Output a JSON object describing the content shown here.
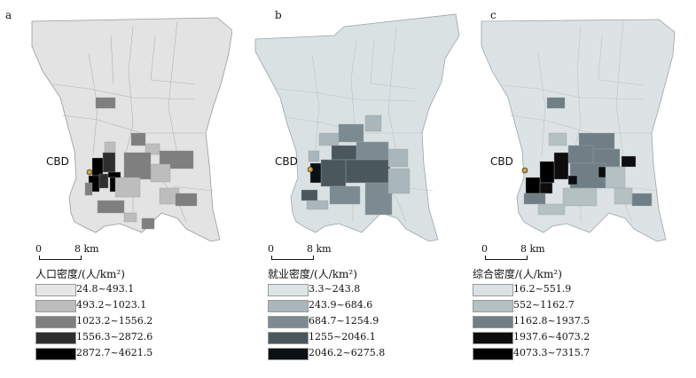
{
  "panels": [
    {
      "id": "a",
      "label": "a",
      "cbd_label": "CBD",
      "scale_zero": "0",
      "scale_km": "8 km",
      "legend_title": "人口密度/(人/km²)",
      "legend": [
        {
          "range": "24.8~493.1",
          "color": "#e6e6e6"
        },
        {
          "range": "493.2~1023.1",
          "color": "#bdbdbd"
        },
        {
          "range": "1023.2~1556.2",
          "color": "#7f7f7f"
        },
        {
          "range": "1556.3~2872.6",
          "color": "#2e2e2e"
        },
        {
          "range": "2872.7~4621.5",
          "color": "#000000"
        }
      ]
    },
    {
      "id": "b",
      "label": "b",
      "cbd_label": "CBD",
      "scale_zero": "0",
      "scale_km": "8 km",
      "legend_title": "就业密度/(人/km²)",
      "legend": [
        {
          "range": "3.3~243.8",
          "color": "#dce4e6"
        },
        {
          "range": "243.9~684.6",
          "color": "#a9b6bb"
        },
        {
          "range": "684.7~1254.9",
          "color": "#7c8b91"
        },
        {
          "range": "1255~2046.1",
          "color": "#4a585e"
        },
        {
          "range": "2046.2~6275.8",
          "color": "#0b1014"
        }
      ]
    },
    {
      "id": "c",
      "label": "c",
      "cbd_label": "CBD",
      "scale_zero": "0",
      "scale_km": "8 km",
      "legend_title": "综合密度/(人/km²)",
      "legend": [
        {
          "range": "16.2~551.9",
          "color": "#dce2e4"
        },
        {
          "range": "552~1162.7",
          "color": "#b5c0c3"
        },
        {
          "range": "1162.8~1937.5",
          "color": "#6f7f85"
        },
        {
          "range": "1937.6~4073.2",
          "color": "#0d0d0d"
        },
        {
          "range": "4073.3~7315.7",
          "color": "#000000"
        }
      ]
    }
  ],
  "cbd_marker_color": "#c8a23c"
}
